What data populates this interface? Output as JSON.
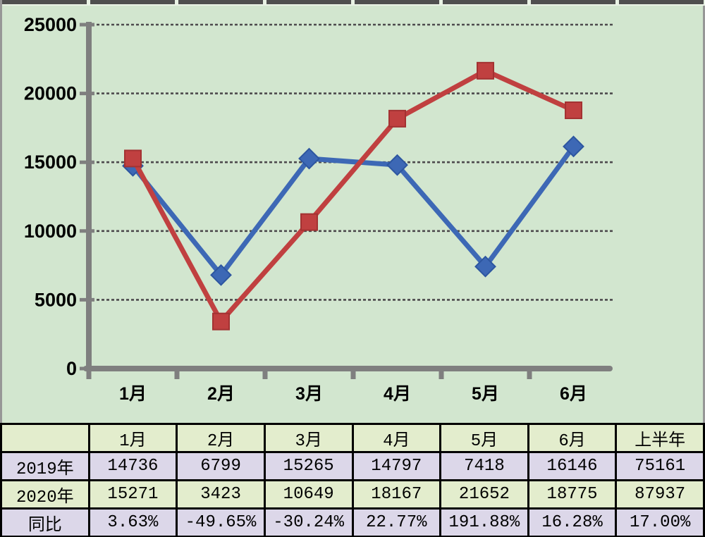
{
  "chart_data": {
    "type": "line",
    "title": "",
    "categories": [
      "1月",
      "2月",
      "3月",
      "4月",
      "5月",
      "6月"
    ],
    "series": [
      {
        "name": "2019年",
        "marker": "diamond",
        "color": "#3d68b5",
        "edge_color": "#2d56a0",
        "values": [
          14736,
          6799,
          15265,
          14797,
          7418,
          16146
        ]
      },
      {
        "name": "2020年",
        "marker": "square",
        "color": "#c04040",
        "edge_color": "#a33232",
        "values": [
          15271,
          3423,
          10649,
          18167,
          21652,
          18775
        ]
      }
    ],
    "xlabel": "",
    "ylabel": "",
    "ylim": [
      0,
      25000
    ],
    "ytick_interval": 5000,
    "ytick_labels": [
      "0",
      "5000",
      "10000",
      "15000",
      "20000",
      "25000"
    ],
    "grid": "horizontal-dashed",
    "legend": "none",
    "plot_bg": "#d2e6cf",
    "axis_color": "#7f7f7f",
    "grid_color": "#4d4a4d",
    "label_color": "#000000"
  },
  "table": {
    "header": [
      "",
      "1月",
      "2月",
      "3月",
      "4月",
      "5月",
      "6月",
      "上半年"
    ],
    "rows": [
      {
        "label": "2019年",
        "values": [
          "14736",
          "6799",
          "15265",
          "14797",
          "7418",
          "16146",
          "75161"
        ]
      },
      {
        "label": "2020年",
        "values": [
          "15271",
          "3423",
          "10649",
          "18167",
          "21652",
          "18775",
          "87937"
        ]
      },
      {
        "label": "同比",
        "values": [
          "3.63%",
          "-49.65%",
          "-30.24%",
          "22.77%",
          "191.88%",
          "16.28%",
          "17.00%"
        ]
      }
    ],
    "row_band_colors": [
      "#e3edcd",
      "#dcd7e9",
      "#e3edcd",
      "#dcd7e9"
    ],
    "border_color": "#000000"
  }
}
